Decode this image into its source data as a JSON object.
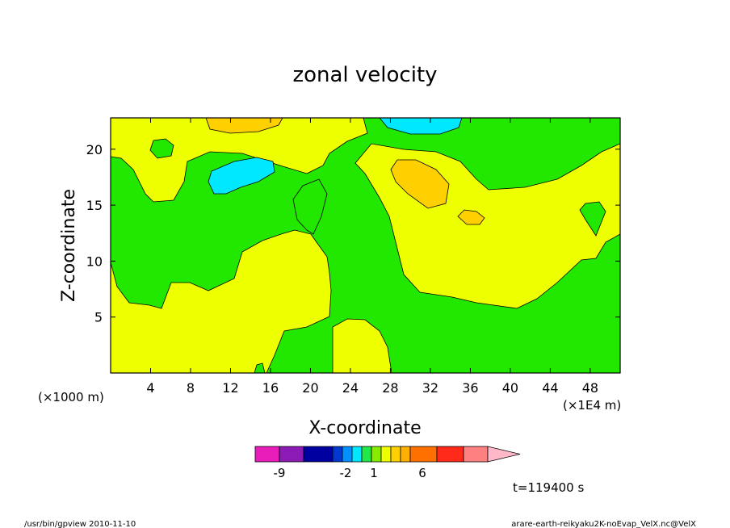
{
  "chart_data": {
    "type": "heatmap",
    "title": "zonal velocity",
    "xlabel": "X-coordinate",
    "ylabel": "Z-coordinate",
    "x_unit_left": "(×1000 m)",
    "x_unit_right": "(×1E4 m)",
    "x_ticks": [
      4,
      8,
      12,
      16,
      20,
      24,
      28,
      32,
      36,
      40,
      44,
      48
    ],
    "y_ticks": [
      5,
      10,
      15,
      20
    ],
    "xlim": [
      0,
      51
    ],
    "ylim": [
      0,
      22.8
    ],
    "grid": false,
    "colorbar": {
      "bins": [
        {
          "color": "#e81dba"
        },
        {
          "color": "#8c1ab4"
        },
        {
          "color": "#0000a0"
        },
        {
          "color": "#0038d0"
        },
        {
          "color": "#0090ff"
        },
        {
          "color": "#00e8ff"
        },
        {
          "color": "#22e84a"
        },
        {
          "color": "#88ec00"
        },
        {
          "color": "#eeff00"
        },
        {
          "color": "#ffd000"
        },
        {
          "color": "#ffb000"
        },
        {
          "color": "#ff7000"
        },
        {
          "color": "#ff2a1a"
        },
        {
          "color": "#ff8080"
        },
        {
          "color": "#ffb8c8"
        }
      ],
      "labels": [
        "-9",
        "-2",
        "1",
        "6"
      ]
    },
    "regions": [
      {
        "level": "green",
        "description": "background band"
      },
      {
        "level": "yellow",
        "description": "upper-left and right areas"
      },
      {
        "level": "cyan",
        "description": "negative cores near z=17 and z=22"
      },
      {
        "level": "orange",
        "description": "positive cores near x=30, z=17"
      }
    ],
    "time_label": "t=119400 s",
    "footer_left": "/usr/bin/gpview   2010-11-10",
    "footer_right": "arare-earth-reikyaku2K-noEvap_VelX.nc@VelX"
  },
  "colors": {
    "green": "#22e800",
    "yellow": "#eeff00",
    "cyan": "#00e8ff",
    "orange": "#ffd000",
    "frame": "#000000"
  }
}
